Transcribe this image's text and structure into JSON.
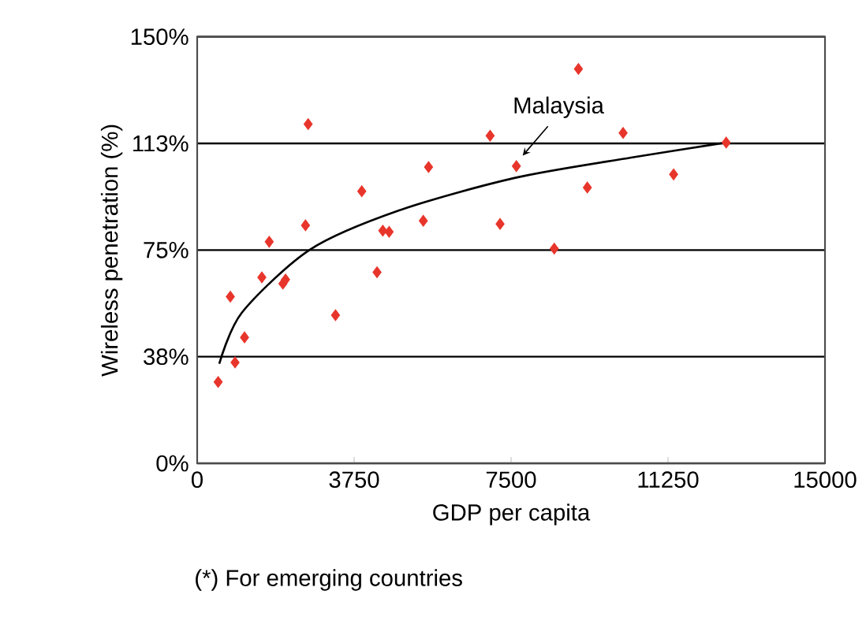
{
  "chart_data": {
    "type": "scatter",
    "xlabel": "GDP per capita",
    "ylabel": "Wireless penetration (%)",
    "xlim": [
      0,
      15000
    ],
    "ylim": [
      0,
      150
    ],
    "xticks": [
      0,
      3750,
      7500,
      11250,
      15000
    ],
    "yticks": [
      {
        "value": 0,
        "label": "0%"
      },
      {
        "value": 37.5,
        "label": "38%"
      },
      {
        "value": 75,
        "label": "75%"
      },
      {
        "value": 112.5,
        "label": "113%"
      },
      {
        "value": 150,
        "label": "150%"
      }
    ],
    "grid": "y",
    "series": [
      {
        "color": "#e8352b",
        "marker": "diamond",
        "x": [
          501,
          905,
          792,
          1131,
          1545,
          1721,
          2048,
          2111,
          2651,
          2588,
          3305,
          3933,
          4297,
          4435,
          4586,
          5403,
          5528,
          6999,
          7237,
          7626,
          9109,
          10177,
          11383,
          9322,
          8531,
          12640
        ],
        "values": [
          28.6,
          35.5,
          58.6,
          44.3,
          65.4,
          77.9,
          63.2,
          64.6,
          119.3,
          83.7,
          52.1,
          95.7,
          67.2,
          81.8,
          81.4,
          85.3,
          104.2,
          115.2,
          84.2,
          104.5,
          138.7,
          116.2,
          101.6,
          97,
          75.5,
          112.8
        ]
      },
      {
        "type": "line",
        "color": "#000000",
        "marker": "none",
        "x": [
          528,
          1068,
          2701,
          4837,
          7600,
          10366,
          12640
        ],
        "values": [
          35,
          53,
          75.2,
          89,
          100.4,
          107.5,
          112.8
        ]
      }
    ],
    "annotations": [
      {
        "text": "Malaysia",
        "x": 7626,
        "y": 104.5
      },
      "(*) For emerging countries"
    ]
  }
}
